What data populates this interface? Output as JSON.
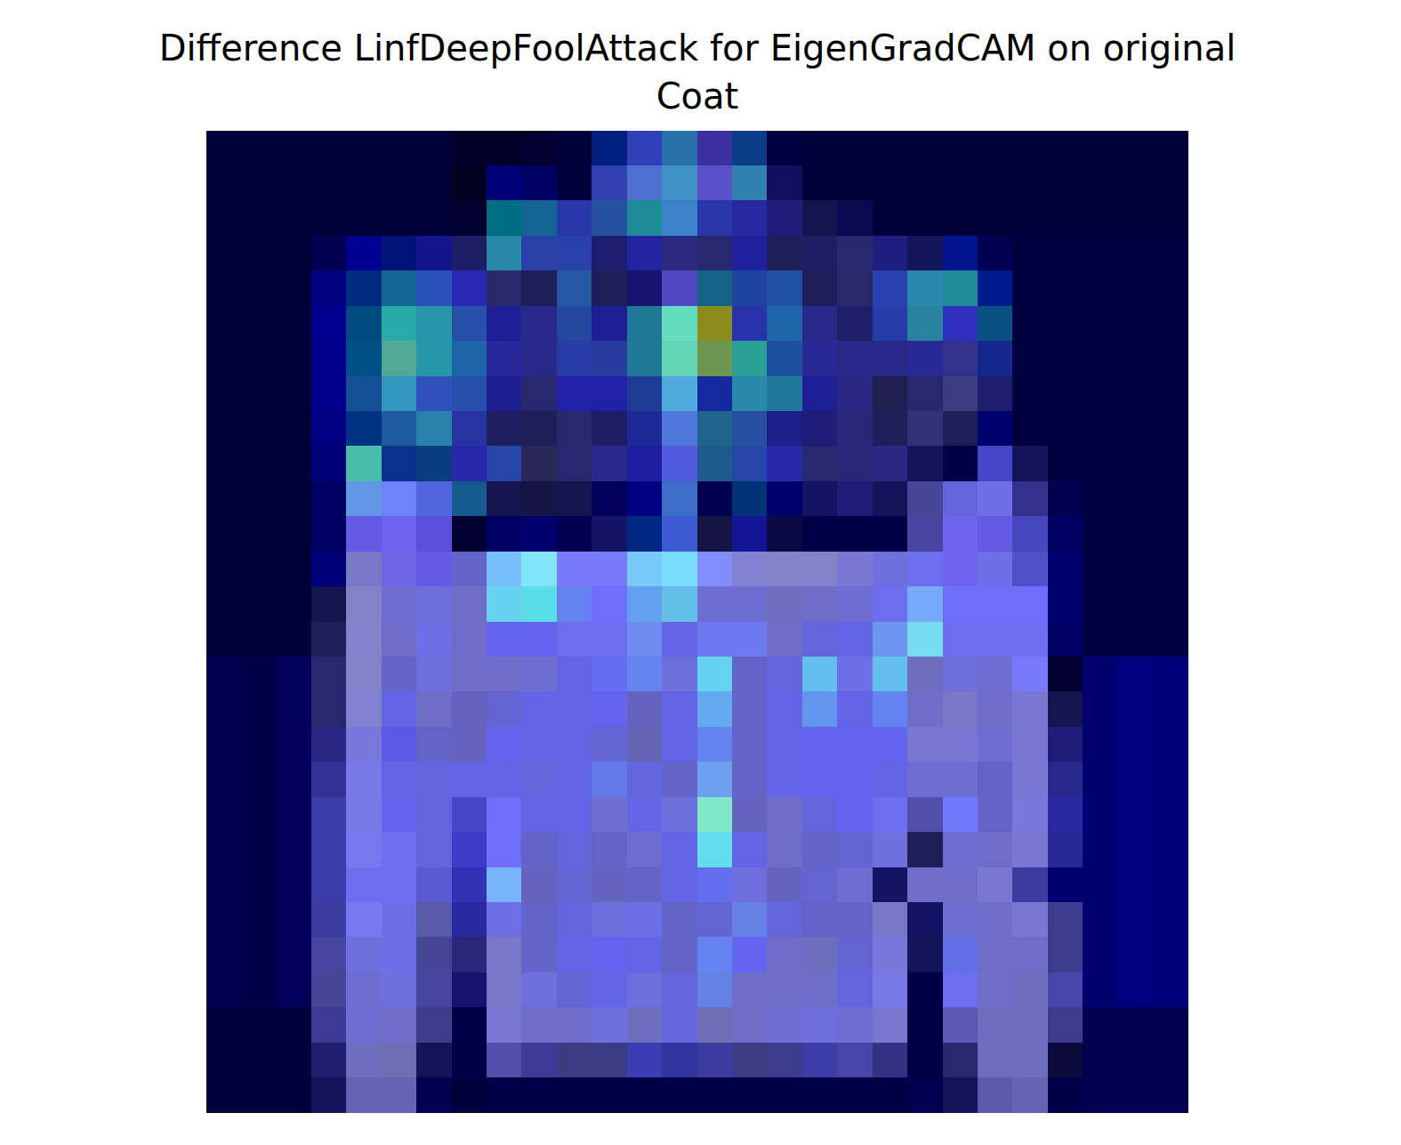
{
  "chart_data": {
    "type": "heatmap",
    "title": "Difference LinfDeepFoolAttack for EigenGradCAM on original\nCoat",
    "tick_labels": false,
    "colors": [
      [
        "#000038",
        "#000038",
        "#000038",
        "#000038",
        "#000038",
        "#000038",
        "#000038",
        "#000028",
        "#000028",
        "#000030",
        "#000038",
        "#002080",
        "#3040b8",
        "#2870a8",
        "#3a30a0",
        "#0a3c88",
        "#000040",
        "#000038",
        "#000038",
        "#000038",
        "#000038",
        "#000038",
        "#000038",
        "#000038",
        "#000038",
        "#000038",
        "#000038",
        "#000038"
      ],
      [
        "#000038",
        "#000038",
        "#000038",
        "#000038",
        "#000038",
        "#000038",
        "#000038",
        "#000020",
        "#000078",
        "#000064",
        "#00003c",
        "#3040b0",
        "#5070d0",
        "#4090c8",
        "#5a50c8",
        "#3080b0",
        "#101060",
        "#000038",
        "#000038",
        "#000038",
        "#000038",
        "#000038",
        "#000038",
        "#000038",
        "#000038",
        "#000038",
        "#000038",
        "#000038"
      ],
      [
        "#000038",
        "#000038",
        "#000038",
        "#000038",
        "#000038",
        "#000038",
        "#000038",
        "#000030",
        "#006e82",
        "#146496",
        "#2838a8",
        "#2850a0",
        "#1e8c96",
        "#3c82c8",
        "#2838a8",
        "#2828a0",
        "#1e1e78",
        "#14144e",
        "#0a0a50",
        "#000038",
        "#000038",
        "#000038",
        "#000038",
        "#000038",
        "#000038",
        "#000038",
        "#000038",
        "#000038"
      ],
      [
        "#000038",
        "#000038",
        "#000038",
        "#000050",
        "#000090",
        "#001478",
        "#14148c",
        "#1e1e64",
        "#2888a8",
        "#2840a8",
        "#2840aa",
        "#1e1e70",
        "#2424a0",
        "#2a2a80",
        "#28286e",
        "#2020a0",
        "#1e1e5a",
        "#1e1e64",
        "#28286e",
        "#1e1e80",
        "#14145a",
        "#001490",
        "#000050",
        "#000040",
        "#000040",
        "#000040",
        "#000040",
        "#000040"
      ],
      [
        "#000038",
        "#000038",
        "#000038",
        "#000080",
        "#002a80",
        "#146496",
        "#2850b8",
        "#2828b4",
        "#28286a",
        "#1e1e5a",
        "#2458a0",
        "#1e1e5a",
        "#141470",
        "#5048c0",
        "#146488",
        "#1e44a0",
        "#2050a0",
        "#1e1e5a",
        "#28286a",
        "#2840b0",
        "#2888b0",
        "#1e8c96",
        "#001c8c",
        "#000040",
        "#000040",
        "#000040",
        "#000040",
        "#000040"
      ],
      [
        "#000038",
        "#000038",
        "#000038",
        "#000090",
        "#004c80",
        "#28aaa8",
        "#2896aa",
        "#2850aa",
        "#1e1e96",
        "#28288a",
        "#2448a0",
        "#1e1e96",
        "#1e7896",
        "#64dcbe",
        "#8c8c1e",
        "#2832aa",
        "#1e64a8",
        "#28288a",
        "#1e1e6a",
        "#283ca8",
        "#2882a0",
        "#3030be",
        "#0a5082",
        "#000040",
        "#000040",
        "#000040",
        "#000040",
        "#000040"
      ],
      [
        "#000038",
        "#000038",
        "#000038",
        "#00008c",
        "#005088",
        "#50aa96",
        "#2896aa",
        "#1e64a8",
        "#28289a",
        "#28288a",
        "#283ca8",
        "#283ca0",
        "#1e7896",
        "#64d2b4",
        "#6e9650",
        "#28a096",
        "#1e50a0",
        "#282896",
        "#28288a",
        "#28288a",
        "#282896",
        "#32328c",
        "#14288c",
        "#000040",
        "#000040",
        "#000040",
        "#000040",
        "#000040"
      ],
      [
        "#000038",
        "#000038",
        "#000038",
        "#00008c",
        "#145096",
        "#3296be",
        "#3050be",
        "#2850aa",
        "#1e1e90",
        "#28286e",
        "#2020aa",
        "#2020aa",
        "#1e3c96",
        "#50aadc",
        "#1428a0",
        "#2888aa",
        "#20789a",
        "#1e1e96",
        "#282882",
        "#1e1e50",
        "#28286e",
        "#3c3c82",
        "#1e1e6e",
        "#000040",
        "#000040",
        "#000040",
        "#000040",
        "#000040"
      ],
      [
        "#000038",
        "#000038",
        "#000038",
        "#000082",
        "#003282",
        "#1e5aa0",
        "#2882aa",
        "#2832a0",
        "#1e1e60",
        "#1e1e5a",
        "#28286e",
        "#1e1e64",
        "#1e2896",
        "#5078dc",
        "#1e648c",
        "#2850a0",
        "#1e1e8c",
        "#1e1e78",
        "#282878",
        "#1e1e5a",
        "#323278",
        "#1e1e5a",
        "#00006e",
        "#000040",
        "#000040",
        "#000040",
        "#000040",
        "#000040"
      ],
      [
        "#000038",
        "#000038",
        "#000038",
        "#000078",
        "#46beaa",
        "#0a328c",
        "#0a3c82",
        "#2828aa",
        "#2846aa",
        "#28285a",
        "#28286e",
        "#28288c",
        "#1e1ea0",
        "#505adc",
        "#1e5a8c",
        "#2846aa",
        "#2828aa",
        "#28286e",
        "#282878",
        "#282882",
        "#14145a",
        "#000046",
        "#4646c8",
        "#14145a",
        "#000040",
        "#000040",
        "#000040",
        "#000040"
      ],
      [
        "#000038",
        "#000038",
        "#000038",
        "#000060",
        "#6496e6",
        "#6e82fa",
        "#5064dc",
        "#145a8c",
        "#141450",
        "#141446",
        "#141450",
        "#00005a",
        "#000082",
        "#3c6ec8",
        "#000050",
        "#003278",
        "#00006e",
        "#141464",
        "#1e1e78",
        "#14145a",
        "#464696",
        "#6464dc",
        "#6e6ee6",
        "#32328c",
        "#000050",
        "#000040",
        "#000040",
        "#000040"
      ],
      [
        "#000038",
        "#000038",
        "#000038",
        "#000060",
        "#645ae6",
        "#6e64f0",
        "#5a50dc",
        "#000032",
        "#000064",
        "#00006e",
        "#000050",
        "#141464",
        "#002882",
        "#3c5ad2",
        "#141446",
        "#141496",
        "#0a0a46",
        "#000046",
        "#000046",
        "#000046",
        "#4646a0",
        "#6e64f0",
        "#645ae6",
        "#4646be",
        "#000060",
        "#000040",
        "#000040",
        "#000040"
      ],
      [
        "#000038",
        "#000038",
        "#000038",
        "#000078",
        "#7878c8",
        "#6e64e6",
        "#645ae6",
        "#6464c8",
        "#78befa",
        "#82e6fa",
        "#7878fa",
        "#7878fa",
        "#78c8fa",
        "#78dcfa",
        "#828cfa",
        "#8282d2",
        "#8282c8",
        "#8282c8",
        "#7878d2",
        "#6e6edc",
        "#6e6ef0",
        "#6e64f0",
        "#6e6ee6",
        "#5050c8",
        "#00006e",
        "#000040",
        "#000040",
        "#000040"
      ],
      [
        "#000038",
        "#000038",
        "#000038",
        "#14144e",
        "#8282c8",
        "#6e6ed2",
        "#6e6edc",
        "#6e6ec8",
        "#64d2f0",
        "#5adce6",
        "#6482f0",
        "#6e6efa",
        "#64a0f0",
        "#64bee6",
        "#6e6ed2",
        "#6e6ed2",
        "#6e6ebe",
        "#6e6ec8",
        "#6e6ed2",
        "#6e6ef0",
        "#78aafa",
        "#6e6efa",
        "#6e6efa",
        "#6e6efa",
        "#00006e",
        "#000040",
        "#000040",
        "#000040"
      ],
      [
        "#000038",
        "#000038",
        "#000038",
        "#1e1e5a",
        "#8282c8",
        "#6e6ec8",
        "#6e6ee6",
        "#6e6ec8",
        "#6464f0",
        "#6464f0",
        "#6e6ef0",
        "#6e6ef0",
        "#6e8cf0",
        "#6464e6",
        "#6e78f0",
        "#6e78f0",
        "#6e6ec8",
        "#6464dc",
        "#6464e6",
        "#6e96f0",
        "#78dcf0",
        "#6e6ef0",
        "#6e6ef0",
        "#6e6ef0",
        "#000064",
        "#000040",
        "#000040",
        "#000040"
      ],
      [
        "#000050",
        "#000046",
        "#00005a",
        "#28286e",
        "#8282c8",
        "#6464c8",
        "#6e6edc",
        "#6e6ec8",
        "#6e6ec8",
        "#6e6ed2",
        "#6464e6",
        "#646ef0",
        "#6482f0",
        "#6e6edc",
        "#64d2f0",
        "#6464c8",
        "#6464dc",
        "#64bef0",
        "#6e6ee6",
        "#64bef0",
        "#6e6ebe",
        "#6e6edc",
        "#6e6ed2",
        "#7878fa",
        "#000032",
        "#000070",
        "#000080",
        "#000078"
      ],
      [
        "#000050",
        "#000046",
        "#00005a",
        "#282870",
        "#8282d2",
        "#6464e6",
        "#6e6ec8",
        "#6464be",
        "#6464d2",
        "#6464e6",
        "#6464e6",
        "#6464f0",
        "#6464be",
        "#6464e6",
        "#64aaf0",
        "#6464c8",
        "#6464e6",
        "#6496f0",
        "#6464e6",
        "#6482f0",
        "#6e6ec8",
        "#7878c8",
        "#6e6ec8",
        "#7878d2",
        "#141450",
        "#000070",
        "#000080",
        "#000078"
      ],
      [
        "#000050",
        "#000046",
        "#00005a",
        "#282882",
        "#7878dc",
        "#5a5ae6",
        "#6464c8",
        "#6464be",
        "#6464f0",
        "#6464e6",
        "#6464e6",
        "#6464d2",
        "#6464b4",
        "#6464e6",
        "#6482f0",
        "#6464c8",
        "#6464e6",
        "#6464f0",
        "#6464f0",
        "#6464f0",
        "#7878d2",
        "#7878d2",
        "#6e6ed2",
        "#7878d2",
        "#1e1e78",
        "#000070",
        "#000080",
        "#000078"
      ],
      [
        "#000050",
        "#000046",
        "#00005a",
        "#323296",
        "#7878e6",
        "#6464e6",
        "#6464dc",
        "#6464e6",
        "#6464e6",
        "#6464dc",
        "#6464e6",
        "#6478e6",
        "#6464dc",
        "#6464c8",
        "#6ea0f0",
        "#6464c8",
        "#6464e6",
        "#6464f0",
        "#6464f0",
        "#6464e6",
        "#6e6ed2",
        "#6e6ed2",
        "#6464c8",
        "#7878d2",
        "#28288c",
        "#000070",
        "#000080",
        "#000078"
      ],
      [
        "#000050",
        "#000046",
        "#00005a",
        "#3c3caa",
        "#7878e6",
        "#6464f0",
        "#6464dc",
        "#4646c8",
        "#6e6efa",
        "#6464e6",
        "#6464e6",
        "#6e6ed2",
        "#6464e6",
        "#6e6edc",
        "#82e6c8",
        "#6464be",
        "#6e6ec8",
        "#6464dc",
        "#6464f0",
        "#6e6ef0",
        "#5050aa",
        "#6e78fa",
        "#6464c8",
        "#7878dc",
        "#2828a0",
        "#000070",
        "#000080",
        "#000078"
      ],
      [
        "#000050",
        "#000046",
        "#00005a",
        "#3c3caa",
        "#7878f0",
        "#6e6ef0",
        "#6464dc",
        "#3c3cc8",
        "#6e6efa",
        "#6464c8",
        "#6464dc",
        "#6464c8",
        "#6e6ed2",
        "#6464e6",
        "#64dcf0",
        "#6464e6",
        "#6e6ec8",
        "#6464c8",
        "#6464d2",
        "#6e6edc",
        "#1e1e5a",
        "#6e6ed2",
        "#6e6ec8",
        "#7878d2",
        "#282896",
        "#000070",
        "#000080",
        "#000078"
      ],
      [
        "#000050",
        "#000046",
        "#00005a",
        "#3c3caa",
        "#6e6ef0",
        "#6e6ef0",
        "#5a5ad2",
        "#3232b4",
        "#78b4fa",
        "#6464be",
        "#6464d2",
        "#6464be",
        "#6464c8",
        "#6464e6",
        "#646ef0",
        "#6e6edc",
        "#6464be",
        "#6464d2",
        "#6e6ed2",
        "#141464",
        "#6e6ec8",
        "#6e6ec8",
        "#7878d2",
        "#3c3ca0",
        "#00006e",
        "#000070",
        "#000080",
        "#000078"
      ],
      [
        "#000050",
        "#000046",
        "#00005a",
        "#3c3ca0",
        "#7878f0",
        "#6e6ee6",
        "#5a5aaa",
        "#2828a0",
        "#6e6ee6",
        "#6464c8",
        "#6464dc",
        "#6e6edc",
        "#6e6ee6",
        "#6464c8",
        "#6464d2",
        "#6482e6",
        "#6464dc",
        "#6464c8",
        "#6464c8",
        "#7878c8",
        "#141464",
        "#6e6ed2",
        "#6e6ec8",
        "#7878d2",
        "#3c3c8c",
        "#000070",
        "#000080",
        "#000078"
      ],
      [
        "#000050",
        "#000046",
        "#00005a",
        "#4646a0",
        "#6e6edc",
        "#6e6ee6",
        "#464696",
        "#282878",
        "#7878c8",
        "#6464c8",
        "#6464e6",
        "#6464f0",
        "#6464e6",
        "#6464c8",
        "#6482f0",
        "#6464f0",
        "#6e6ec8",
        "#6e6ebe",
        "#6464d2",
        "#7878dc",
        "#14145a",
        "#646ee6",
        "#6e6ec8",
        "#6e6ec8",
        "#3c3c8c",
        "#000070",
        "#000080",
        "#000078"
      ],
      [
        "#000050",
        "#000046",
        "#00005a",
        "#464696",
        "#6e6ed2",
        "#6e6edc",
        "#4646a0",
        "#14146e",
        "#7878c8",
        "#6e6edc",
        "#6464d2",
        "#6464e6",
        "#6e6edc",
        "#6464dc",
        "#6482e6",
        "#6e6ec8",
        "#6e6ec8",
        "#6e6ec8",
        "#6464dc",
        "#7878e6",
        "#000046",
        "#6e6ef0",
        "#6e6ec8",
        "#6e6ebe",
        "#4646aa",
        "#000070",
        "#000080",
        "#000078"
      ],
      [
        "#00003c",
        "#00003c",
        "#00003c",
        "#3c3c96",
        "#6e6ed2",
        "#6e6ec8",
        "#3c3c8c",
        "#000046",
        "#7878d2",
        "#6e6ec8",
        "#6e6ec8",
        "#6e6edc",
        "#6e6ebe",
        "#6464dc",
        "#6e6eb4",
        "#6e6ec8",
        "#6e6ed2",
        "#6e6edc",
        "#6e6ed2",
        "#7878d2",
        "#000046",
        "#5a5ab4",
        "#6e6ebe",
        "#6e6ebe",
        "#3c3c8c",
        "#000050",
        "#000050",
        "#000050"
      ],
      [
        "#00003c",
        "#00003c",
        "#00003c",
        "#1e1e6e",
        "#6e6ebe",
        "#6e6eb4",
        "#14145a",
        "#000046",
        "#5050aa",
        "#3c3c96",
        "#3c3c82",
        "#3c3c82",
        "#3c3cb4",
        "#3232a0",
        "#3c3ca0",
        "#3c3c82",
        "#3c3c8c",
        "#3c3caa",
        "#4646aa",
        "#323282",
        "#000046",
        "#28286e",
        "#6e6ebe",
        "#6e6ebe",
        "#0a0a3c",
        "#000050",
        "#000050",
        "#000050"
      ],
      [
        "#00003c",
        "#00003c",
        "#00003c",
        "#14145a",
        "#6464b4",
        "#6464b4",
        "#000050",
        "#00003c",
        "#000046",
        "#000046",
        "#000046",
        "#000046",
        "#000046",
        "#000046",
        "#000046",
        "#000046",
        "#000046",
        "#000046",
        "#000046",
        "#000046",
        "#000050",
        "#14145a",
        "#5a5aaa",
        "#6464b4",
        "#000046",
        "#000050",
        "#000050",
        "#000050"
      ]
    ]
  }
}
